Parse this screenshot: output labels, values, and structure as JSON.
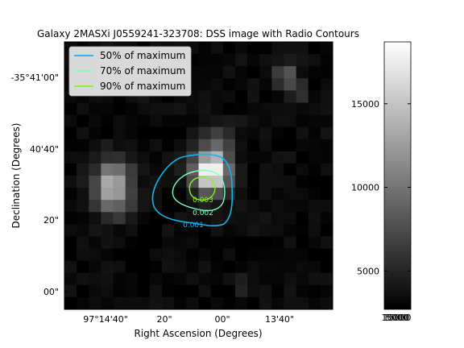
{
  "chart_data": {
    "type": "heatmap",
    "title": "Galaxy 2MASXi J0559241-323708: DSS image with Radio Contours",
    "xlabel": "Right Ascension (Degrees)",
    "ylabel": "Declination (Degrees)",
    "x_ticks": [
      "97°14'40\"",
      "20\"",
      "00\"",
      "13'40\""
    ],
    "y_ticks": [
      "-35°41'00\"",
      "40'40\"",
      "20\"",
      "00\""
    ],
    "colorbar": {
      "range": [
        2700,
        18700
      ],
      "ticks": [
        5000,
        10000,
        15000
      ],
      "tick_labels": [
        "5000",
        "10000",
        "15000"
      ],
      "bottom_overlap_labels": [
        "5000",
        "10000",
        "15000"
      ],
      "colormap": "gray"
    },
    "legend": {
      "placement": "upper-left",
      "entries": [
        {
          "label": "50% of maximum",
          "color": "#1ab2ee"
        },
        {
          "label": "70% of maximum",
          "color": "#7fffc0"
        },
        {
          "label": "90% of maximum",
          "color": "#88ee22"
        }
      ]
    },
    "contour_labels": [
      "0.001",
      "0.002",
      "0.003"
    ],
    "image": {
      "rows": 22,
      "cols": 22,
      "background": 3200,
      "sources": [
        {
          "row": 11.5,
          "col": 3.5,
          "peak": 14500,
          "sigma_r": 1.5,
          "sigma_c": 1.05
        },
        {
          "row": 10.2,
          "col": 11.5,
          "peak": 19000,
          "sigma_r": 1.2,
          "sigma_c": 1.05
        },
        {
          "row": 7.6,
          "col": 12.2,
          "peak": 6500,
          "sigma_r": 1.2,
          "sigma_c": 1.0
        },
        {
          "row": 2.2,
          "col": 17.6,
          "peak": 8500,
          "sigma_r": 0.75,
          "sigma_c": 0.75
        },
        {
          "row": 3.6,
          "col": 18.7,
          "peak": 6000,
          "sigma_r": 0.6,
          "sigma_c": 0.6
        },
        {
          "row": 19.7,
          "col": 14.2,
          "peak": 4800,
          "sigma_r": 0.55,
          "sigma_c": 0.6
        }
      ]
    }
  }
}
